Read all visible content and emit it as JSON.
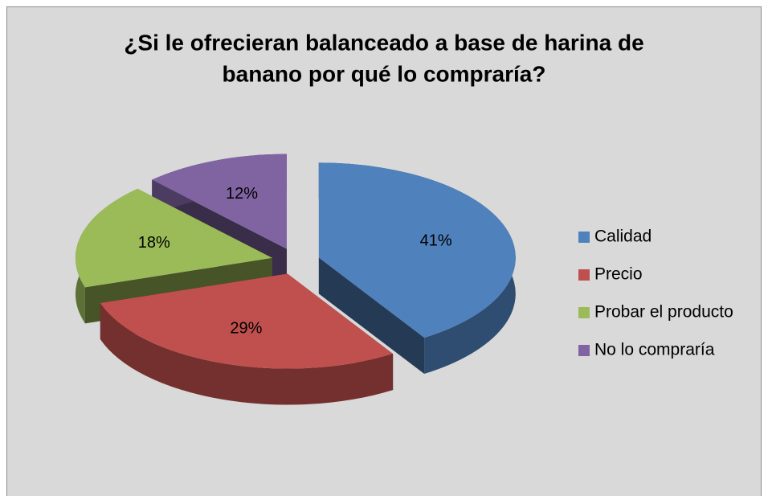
{
  "chart_data": {
    "type": "pie",
    "title": [
      "¿Si le ofrecieran balanceado a base de harina de",
      "banano por qué lo compraría?"
    ],
    "categories": [
      "Calidad",
      "Precio",
      "Probar el producto",
      "No lo compraría"
    ],
    "values": [
      41,
      29,
      18,
      12
    ],
    "value_labels": [
      "41%",
      "29%",
      "18%",
      "12%"
    ],
    "colors": [
      "#4f81bd",
      "#c0504d",
      "#9bbb59",
      "#8064a2"
    ],
    "legend": "right"
  }
}
